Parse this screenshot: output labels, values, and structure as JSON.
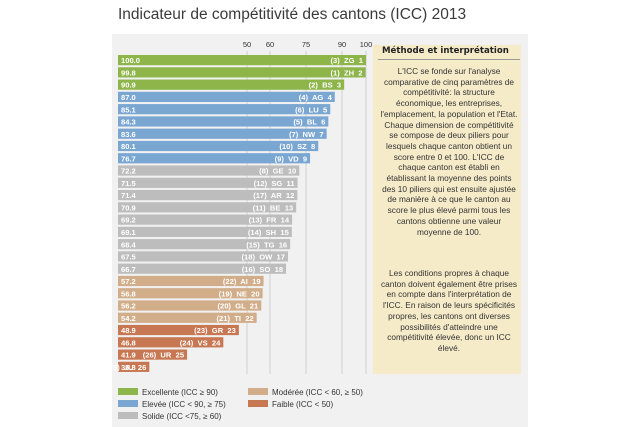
{
  "title": "Indicateur de compétitivité des cantons (ICC) 2013",
  "method": {
    "title": "Méthode et interprétation",
    "p1": "L'ICC se fonde sur l'analyse comparative de cinq paramètres de compétitivité: la structure économique, les entreprises, l'emplacement, la population et l'Etat. Chaque dimension de compétitivité se compose de deux piliers pour lesquels chaque canton obtient un score entre 0 et 100. L'ICC de chaque canton est établi en établissant la moyenne des points des 10 piliers qui est ensuite ajustée de manière à ce que le canton au score le plus élevé parmi tous les cantons obtienne une valeur moyenne de 100.",
    "p2": "Les conditions propres à chaque canton doivent également être prises en compte dans l'interprétation de l'ICC. En raison de leurs spécificités propres, les cantons ont diverses possibilités d'atteindre une compétitivité élevée, donc un ICC élevé."
  },
  "legend": [
    {
      "label": "Excellente (ICC ≥ 90)",
      "color": "#8db54a"
    },
    {
      "label": "Elevée (ICC < 90, ≥ 75)",
      "color": "#7aa6d2"
    },
    {
      "label": "Solide (ICC <75, ≥ 60)",
      "color": "#bdbdbd"
    },
    {
      "label": "Modérée (ICC < 60, ≥ 50)",
      "color": "#d2ad8a"
    },
    {
      "label": "Faible (ICC < 50)",
      "color": "#c77752"
    }
  ],
  "chart_data": {
    "type": "bar",
    "orientation": "horizontal",
    "xticks": [
      50,
      60,
      75,
      90,
      100
    ],
    "xlim": [
      0,
      100
    ],
    "tier_colors": {
      "excellente": "#8db54a",
      "elevee": "#7aa6d2",
      "solide": "#bdbdbd",
      "moderee": "#d2ad8a",
      "faible": "#c77752"
    },
    "bars": [
      {
        "value": "100.0",
        "label": "(3)  ZG  1",
        "tier": "excellente"
      },
      {
        "value": "99.8",
        "label": "(1)  ZH  2",
        "tier": "excellente"
      },
      {
        "value": "90.9",
        "label": "(2)  BS  3",
        "tier": "excellente"
      },
      {
        "value": "87.0",
        "label": "(4)  AG  4",
        "tier": "elevee"
      },
      {
        "value": "85.1",
        "label": "(6)  LU  5",
        "tier": "elevee"
      },
      {
        "value": "84.3",
        "label": "(5)  BL  6",
        "tier": "elevee"
      },
      {
        "value": "83.6",
        "label": "(7)  NW  7",
        "tier": "elevee"
      },
      {
        "value": "80.1",
        "label": "(10)  SZ  8",
        "tier": "elevee"
      },
      {
        "value": "76.7",
        "label": "(9)  VD  9",
        "tier": "elevee"
      },
      {
        "value": "72.2",
        "label": "(8)  GE  10",
        "tier": "solide"
      },
      {
        "value": "71.5",
        "label": "(12)  SG  11",
        "tier": "solide"
      },
      {
        "value": "71.4",
        "label": "(17)  AR  12",
        "tier": "solide"
      },
      {
        "value": "70.9",
        "label": "(11)  BE  13",
        "tier": "solide"
      },
      {
        "value": "69.2",
        "label": "(13)  FR  14",
        "tier": "solide"
      },
      {
        "value": "69.1",
        "label": "(14)  SH  15",
        "tier": "solide"
      },
      {
        "value": "68.4",
        "label": "(15)  TG  16",
        "tier": "solide"
      },
      {
        "value": "67.5",
        "label": "(18)  OW  17",
        "tier": "solide"
      },
      {
        "value": "66.7",
        "label": "(16)  SO  18",
        "tier": "solide"
      },
      {
        "value": "57.2",
        "label": "(22)  AI  19",
        "tier": "moderee"
      },
      {
        "value": "56.8",
        "label": "(19)  NE  20",
        "tier": "moderee"
      },
      {
        "value": "56.2",
        "label": "(20)  GL  21",
        "tier": "moderee"
      },
      {
        "value": "54.2",
        "label": "(21)  TI  22",
        "tier": "moderee"
      },
      {
        "value": "48.9",
        "label": "(23)  GR  23",
        "tier": "faible"
      },
      {
        "value": "46.8",
        "label": "(24)  VS  24",
        "tier": "faible"
      },
      {
        "value": "41.9",
        "label": "(26)  UR  25",
        "tier": "faible"
      },
      {
        "value": "36.8",
        "label": "(25)  JU  26",
        "tier": "faible"
      }
    ]
  }
}
